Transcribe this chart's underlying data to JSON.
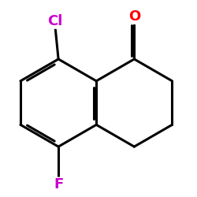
{
  "background_color": "#ffffff",
  "bond_color": "#000000",
  "bond_width": 2.2,
  "atom_colors": {
    "Cl": "#cc00cc",
    "F": "#cc00cc",
    "O": "#ff0000"
  },
  "font_size_Cl": 13,
  "font_size_F": 13,
  "font_size_O": 13
}
